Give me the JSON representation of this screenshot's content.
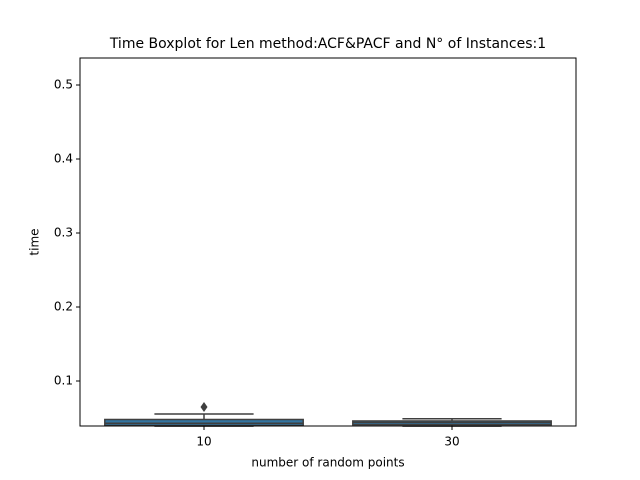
{
  "chart_data": {
    "type": "boxplot",
    "title": "Time Boxplot for Len method:ACF&PACF and N° of Instances:1",
    "x_label": "number of random points",
    "y_label": "time",
    "categories": [
      "10",
      "30"
    ],
    "min": [
      0.039,
      0.039
    ],
    "q1": [
      0.04,
      0.041
    ],
    "median": [
      0.043,
      0.044
    ],
    "q3": [
      0.048,
      0.046
    ],
    "max": [
      0.0554,
      0.049
    ],
    "outliers": [
      [
        0.0649
      ],
      []
    ],
    "color": "#3274a1",
    "line_color": "#3f3f3f",
    "ylim": [
      0.0392,
      0.5365
    ],
    "yticks": [
      0.1,
      0.2,
      0.3,
      0.4,
      0.5
    ]
  }
}
